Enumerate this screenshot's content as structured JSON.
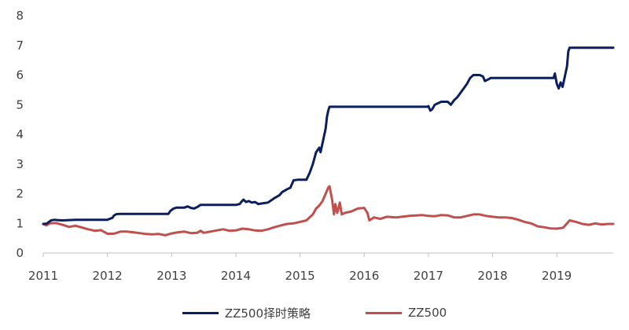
{
  "chart_data": {
    "type": "line",
    "title": "",
    "xlabel": "",
    "ylabel": "",
    "xlim": [
      2011.0,
      2019.88
    ],
    "ylim": [
      0,
      8
    ],
    "x_ticks": [
      "2011",
      "2012",
      "2013",
      "2014",
      "2015",
      "2016",
      "2017",
      "2018",
      "2019"
    ],
    "y_ticks": [
      "0",
      "1",
      "2",
      "3",
      "4",
      "5",
      "6",
      "7",
      "8"
    ],
    "grid": false,
    "legend_position": "bottom",
    "series": [
      {
        "name": "ZZ500择时策略",
        "color": "#0b1f5e",
        "points": [
          [
            2011.0,
            0.98
          ],
          [
            2011.05,
            0.99
          ],
          [
            2011.08,
            1.03
          ],
          [
            2011.12,
            1.1
          ],
          [
            2011.18,
            1.12
          ],
          [
            2011.22,
            1.11
          ],
          [
            2011.3,
            1.1
          ],
          [
            2011.5,
            1.12
          ],
          [
            2011.8,
            1.12
          ],
          [
            2012.0,
            1.12
          ],
          [
            2012.02,
            1.14
          ],
          [
            2012.06,
            1.17
          ],
          [
            2012.08,
            1.19
          ],
          [
            2012.1,
            1.26
          ],
          [
            2012.14,
            1.31
          ],
          [
            2012.2,
            1.32
          ],
          [
            2012.5,
            1.32
          ],
          [
            2012.95,
            1.32
          ],
          [
            2012.98,
            1.42
          ],
          [
            2013.03,
            1.5
          ],
          [
            2013.08,
            1.53
          ],
          [
            2013.2,
            1.53
          ],
          [
            2013.25,
            1.57
          ],
          [
            2013.3,
            1.52
          ],
          [
            2013.35,
            1.5
          ],
          [
            2013.4,
            1.55
          ],
          [
            2013.45,
            1.62
          ],
          [
            2013.7,
            1.62
          ],
          [
            2014.0,
            1.62
          ],
          [
            2014.06,
            1.65
          ],
          [
            2014.1,
            1.76
          ],
          [
            2014.12,
            1.8
          ],
          [
            2014.16,
            1.72
          ],
          [
            2014.2,
            1.75
          ],
          [
            2014.25,
            1.7
          ],
          [
            2014.3,
            1.72
          ],
          [
            2014.35,
            1.65
          ],
          [
            2014.4,
            1.67
          ],
          [
            2014.5,
            1.7
          ],
          [
            2014.6,
            1.85
          ],
          [
            2014.68,
            1.95
          ],
          [
            2014.72,
            2.05
          ],
          [
            2014.76,
            2.1
          ],
          [
            2014.8,
            2.15
          ],
          [
            2014.85,
            2.2
          ],
          [
            2014.9,
            2.45
          ],
          [
            2014.96,
            2.47
          ],
          [
            2015.1,
            2.47
          ],
          [
            2015.15,
            2.7
          ],
          [
            2015.2,
            3.0
          ],
          [
            2015.25,
            3.4
          ],
          [
            2015.3,
            3.55
          ],
          [
            2015.32,
            3.4
          ],
          [
            2015.36,
            3.8
          ],
          [
            2015.4,
            4.2
          ],
          [
            2015.42,
            4.6
          ],
          [
            2015.44,
            4.8
          ],
          [
            2015.46,
            4.93
          ],
          [
            2015.6,
            4.93
          ],
          [
            2016.0,
            4.93
          ],
          [
            2016.5,
            4.93
          ],
          [
            2016.98,
            4.93
          ],
          [
            2017.0,
            4.95
          ],
          [
            2017.03,
            4.8
          ],
          [
            2017.06,
            4.85
          ],
          [
            2017.1,
            5.0
          ],
          [
            2017.15,
            5.05
          ],
          [
            2017.2,
            5.1
          ],
          [
            2017.3,
            5.1
          ],
          [
            2017.35,
            5.0
          ],
          [
            2017.4,
            5.15
          ],
          [
            2017.45,
            5.25
          ],
          [
            2017.5,
            5.4
          ],
          [
            2017.55,
            5.55
          ],
          [
            2017.6,
            5.7
          ],
          [
            2017.65,
            5.9
          ],
          [
            2017.7,
            6.0
          ],
          [
            2017.8,
            6.0
          ],
          [
            2017.85,
            5.95
          ],
          [
            2017.88,
            5.8
          ],
          [
            2017.93,
            5.85
          ],
          [
            2017.97,
            5.9
          ],
          [
            2018.02,
            5.9
          ],
          [
            2018.5,
            5.9
          ],
          [
            2018.95,
            5.9
          ],
          [
            2018.97,
            6.05
          ],
          [
            2019.0,
            5.7
          ],
          [
            2019.03,
            5.55
          ],
          [
            2019.06,
            5.75
          ],
          [
            2019.09,
            5.6
          ],
          [
            2019.12,
            5.9
          ],
          [
            2019.16,
            6.3
          ],
          [
            2019.18,
            6.8
          ],
          [
            2019.2,
            6.92
          ],
          [
            2019.5,
            6.92
          ],
          [
            2019.88,
            6.92
          ]
        ]
      },
      {
        "name": "ZZ500",
        "color": "#c0504d",
        "points": [
          [
            2011.0,
            0.98
          ],
          [
            2011.05,
            0.93
          ],
          [
            2011.1,
            1.0
          ],
          [
            2011.2,
            1.01
          ],
          [
            2011.3,
            0.95
          ],
          [
            2011.4,
            0.88
          ],
          [
            2011.5,
            0.92
          ],
          [
            2011.6,
            0.86
          ],
          [
            2011.7,
            0.8
          ],
          [
            2011.8,
            0.75
          ],
          [
            2011.9,
            0.77
          ],
          [
            2012.0,
            0.65
          ],
          [
            2012.1,
            0.65
          ],
          [
            2012.2,
            0.72
          ],
          [
            2012.3,
            0.72
          ],
          [
            2012.4,
            0.7
          ],
          [
            2012.5,
            0.67
          ],
          [
            2012.6,
            0.64
          ],
          [
            2012.7,
            0.63
          ],
          [
            2012.8,
            0.64
          ],
          [
            2012.9,
            0.6
          ],
          [
            2013.0,
            0.66
          ],
          [
            2013.1,
            0.7
          ],
          [
            2013.2,
            0.72
          ],
          [
            2013.3,
            0.67
          ],
          [
            2013.4,
            0.68
          ],
          [
            2013.45,
            0.75
          ],
          [
            2013.5,
            0.68
          ],
          [
            2013.6,
            0.72
          ],
          [
            2013.7,
            0.76
          ],
          [
            2013.8,
            0.8
          ],
          [
            2013.9,
            0.75
          ],
          [
            2014.0,
            0.76
          ],
          [
            2014.1,
            0.82
          ],
          [
            2014.2,
            0.8
          ],
          [
            2014.3,
            0.76
          ],
          [
            2014.4,
            0.75
          ],
          [
            2014.5,
            0.8
          ],
          [
            2014.6,
            0.87
          ],
          [
            2014.7,
            0.93
          ],
          [
            2014.8,
            0.98
          ],
          [
            2014.9,
            1.0
          ],
          [
            2015.0,
            1.05
          ],
          [
            2015.1,
            1.1
          ],
          [
            2015.2,
            1.3
          ],
          [
            2015.25,
            1.5
          ],
          [
            2015.3,
            1.6
          ],
          [
            2015.35,
            1.75
          ],
          [
            2015.4,
            2.0
          ],
          [
            2015.44,
            2.2
          ],
          [
            2015.46,
            2.25
          ],
          [
            2015.5,
            1.8
          ],
          [
            2015.53,
            1.3
          ],
          [
            2015.55,
            1.65
          ],
          [
            2015.58,
            1.35
          ],
          [
            2015.62,
            1.7
          ],
          [
            2015.65,
            1.3
          ],
          [
            2015.7,
            1.35
          ],
          [
            2015.8,
            1.4
          ],
          [
            2015.9,
            1.5
          ],
          [
            2016.0,
            1.52
          ],
          [
            2016.05,
            1.35
          ],
          [
            2016.08,
            1.1
          ],
          [
            2016.15,
            1.2
          ],
          [
            2016.25,
            1.15
          ],
          [
            2016.35,
            1.22
          ],
          [
            2016.5,
            1.2
          ],
          [
            2016.7,
            1.25
          ],
          [
            2016.9,
            1.28
          ],
          [
            2017.0,
            1.25
          ],
          [
            2017.1,
            1.24
          ],
          [
            2017.2,
            1.28
          ],
          [
            2017.3,
            1.27
          ],
          [
            2017.4,
            1.2
          ],
          [
            2017.5,
            1.2
          ],
          [
            2017.6,
            1.25
          ],
          [
            2017.7,
            1.3
          ],
          [
            2017.8,
            1.3
          ],
          [
            2017.9,
            1.25
          ],
          [
            2018.0,
            1.22
          ],
          [
            2018.1,
            1.2
          ],
          [
            2018.2,
            1.2
          ],
          [
            2018.3,
            1.18
          ],
          [
            2018.4,
            1.12
          ],
          [
            2018.5,
            1.05
          ],
          [
            2018.6,
            1.0
          ],
          [
            2018.7,
            0.9
          ],
          [
            2018.8,
            0.87
          ],
          [
            2018.9,
            0.83
          ],
          [
            2019.0,
            0.82
          ],
          [
            2019.1,
            0.85
          ],
          [
            2019.2,
            1.1
          ],
          [
            2019.3,
            1.05
          ],
          [
            2019.4,
            0.98
          ],
          [
            2019.5,
            0.95
          ],
          [
            2019.6,
            1.0
          ],
          [
            2019.7,
            0.96
          ],
          [
            2019.8,
            0.98
          ],
          [
            2019.88,
            0.98
          ]
        ]
      }
    ]
  }
}
